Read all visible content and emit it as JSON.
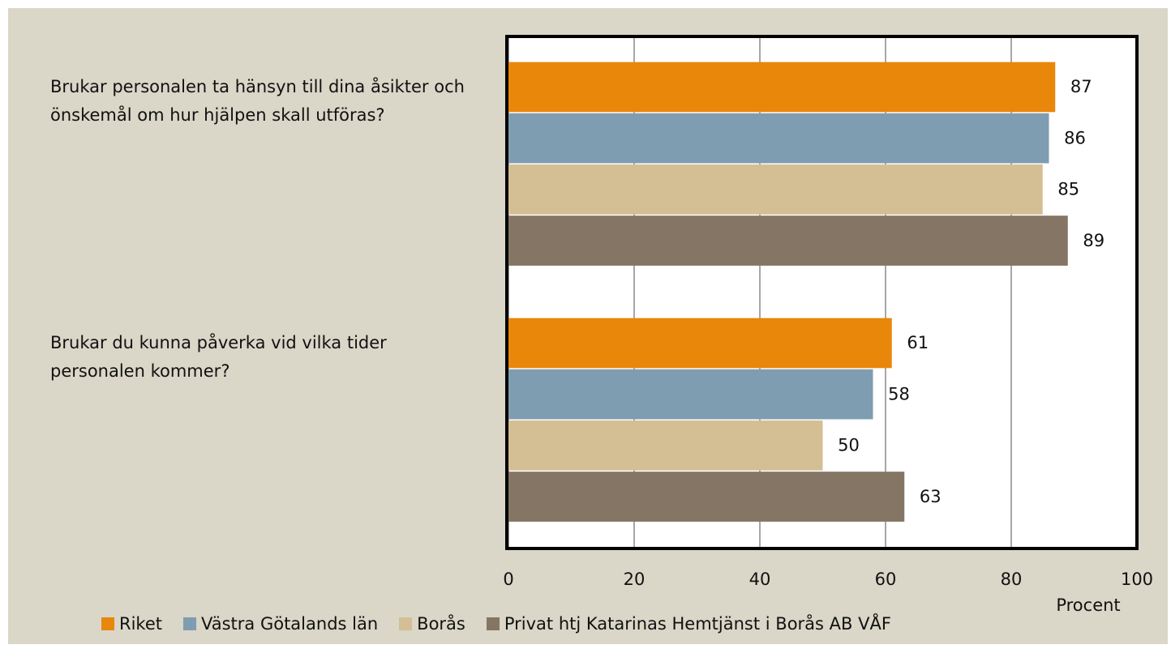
{
  "chart_data": {
    "type": "bar",
    "orientation": "horizontal",
    "categories": [
      "Brukar personalen ta hänsyn till dina åsikter och önskemål om hur hjälpen skall utföras?",
      "Brukar du kunna påverka vid vilka tider personalen kommer?"
    ],
    "series": [
      {
        "name": "Riket",
        "color": "#e8870a",
        "values": [
          87,
          61
        ]
      },
      {
        "name": "Västra Götalands län",
        "color": "#7f9db0",
        "values": [
          86,
          58
        ]
      },
      {
        "name": "Borås",
        "color": "#d4bf94",
        "values": [
          85,
          50
        ]
      },
      {
        "name": "Privat htj Katarinas Hemtjänst i Borås AB VÅF",
        "color": "#857564",
        "values": [
          89,
          63
        ]
      }
    ],
    "xlabel": "Procent",
    "xlim": [
      0,
      100
    ],
    "xticks": [
      0,
      20,
      40,
      60,
      80,
      100
    ],
    "grid": true,
    "legend": "bottom"
  }
}
